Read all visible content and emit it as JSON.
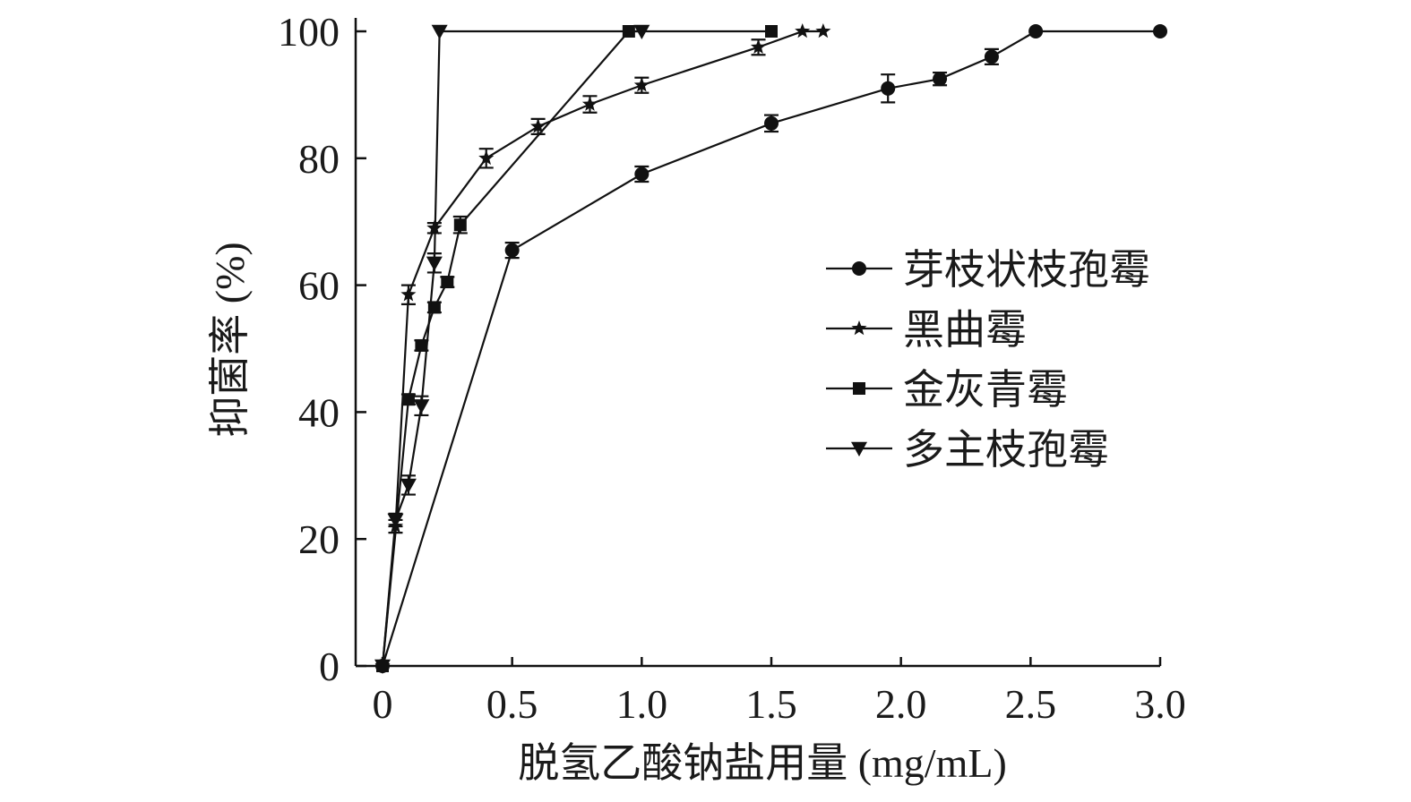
{
  "chart_data": {
    "type": "line",
    "xlabel": "脱氢乙酸钠盐用量 (mg/mL)",
    "ylabel": "抑菌率 (%)",
    "xlim": [
      0,
      3.0
    ],
    "ylim": [
      0,
      100
    ],
    "x_ticks": [
      "0",
      "0.5",
      "1.0",
      "1.5",
      "2.0",
      "2.5",
      "3.0"
    ],
    "y_ticks": [
      "0",
      "20",
      "40",
      "60",
      "80",
      "100"
    ],
    "grid": false,
    "legend_position": "right-center",
    "series": [
      {
        "name": "芽枝状枝孢霉",
        "marker": "circle",
        "x": [
          0,
          0.5,
          1.0,
          1.5,
          1.95,
          2.15,
          2.35,
          2.52,
          3.0
        ],
        "y": [
          0,
          65.5,
          77.5,
          85.5,
          91,
          92.5,
          96,
          100,
          100
        ],
        "err": [
          0,
          1.2,
          1.2,
          1.3,
          2.2,
          1.0,
          1.2,
          0,
          0
        ]
      },
      {
        "name": "黑曲霉",
        "marker": "star",
        "x": [
          0,
          0.05,
          0.1,
          0.2,
          0.4,
          0.6,
          0.8,
          1.0,
          1.45,
          1.62,
          1.7
        ],
        "y": [
          0,
          22,
          58.5,
          69,
          80,
          85,
          88.5,
          91.5,
          97.5,
          100,
          100
        ],
        "err": [
          0,
          1.0,
          1.5,
          0.8,
          1.5,
          1.2,
          1.3,
          1.2,
          1.2,
          0,
          0
        ]
      },
      {
        "name": "金灰青霉",
        "marker": "square",
        "x": [
          0,
          0.1,
          0.15,
          0.2,
          0.25,
          0.3,
          0.95,
          1.5
        ],
        "y": [
          0,
          42,
          50.5,
          56.5,
          60.5,
          69.5,
          100,
          100
        ],
        "err": [
          0,
          0.8,
          0.8,
          0.8,
          0.8,
          1.3,
          0,
          0
        ]
      },
      {
        "name": "多主枝孢霉",
        "marker": "triangle-down",
        "x": [
          0,
          0.05,
          0.1,
          0.15,
          0.2,
          0.22,
          1.0
        ],
        "y": [
          0,
          23,
          28.5,
          41,
          63.5,
          100,
          100
        ],
        "err": [
          0,
          1.0,
          1.5,
          1.5,
          1.5,
          0,
          0
        ]
      }
    ]
  }
}
